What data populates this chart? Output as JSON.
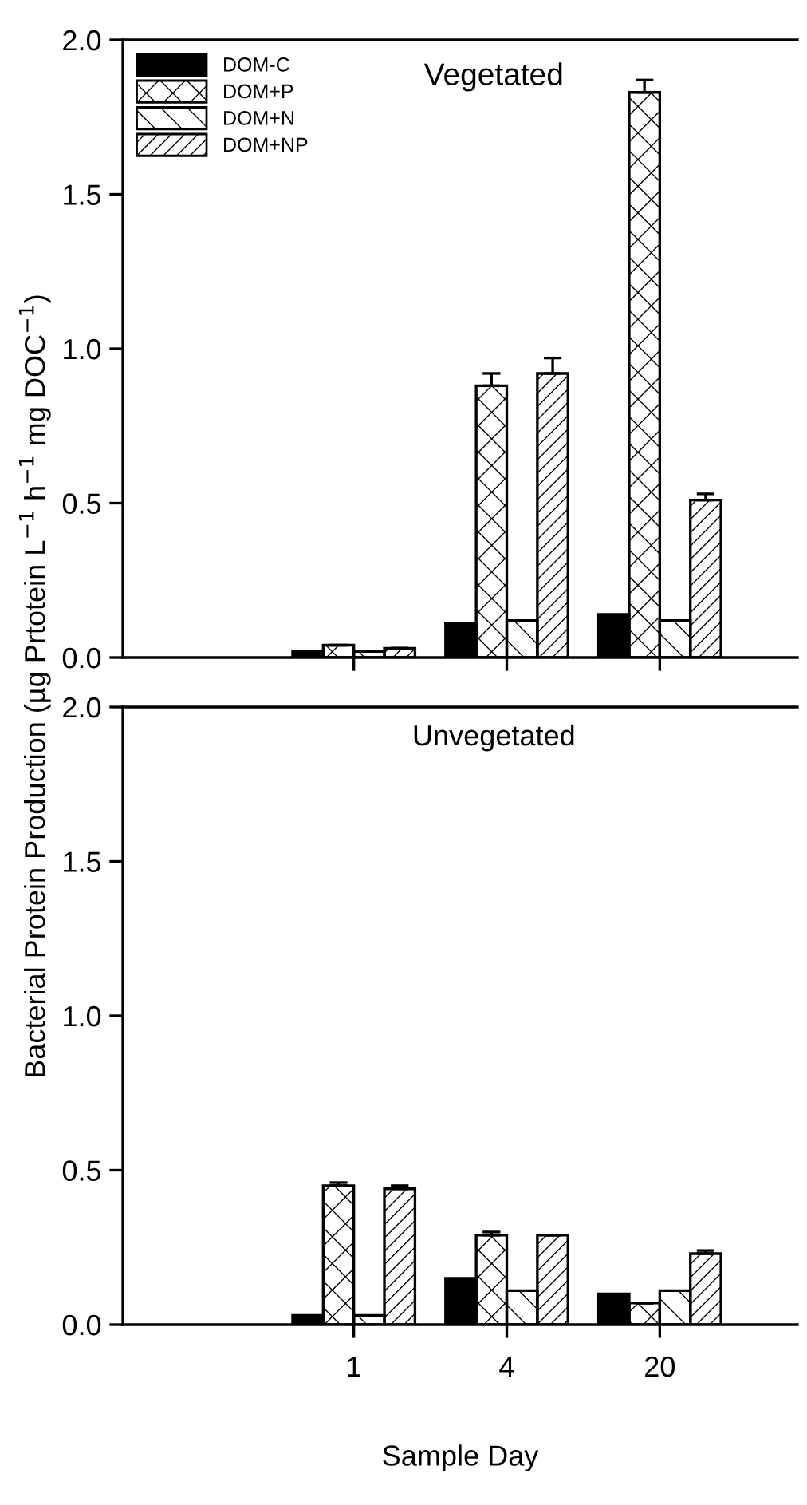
{
  "chart_data": [
    {
      "type": "bar",
      "title": "Vegetated",
      "ylabel": "Bacterial Protein Production (µg Prtotein L$^{−1}$ h$^{−1}$ mg DOC$^{−1}$)",
      "categories": [
        "1",
        "4",
        "20"
      ],
      "ylim": [
        0,
        2.0
      ],
      "yticks": [
        {
          "value": 0,
          "label": "0.0"
        },
        {
          "value": 0.5,
          "label": "0.5"
        },
        {
          "value": 1,
          "label": "1.0"
        },
        {
          "value": 1.5,
          "label": "1.5"
        },
        {
          "value": 2,
          "label": "2.0"
        }
      ],
      "tick_labels": "y",
      "legend": "top left",
      "grid": false,
      "series": [
        {
          "name": "DOM-C",
          "color": "#000000",
          "values": [
            0.02,
            0.11,
            0.14
          ]
        },
        {
          "name": "DOM+P",
          "color": "#000000",
          "values": [
            0.04,
            0.88,
            1.83
          ],
          "errors": [
            null,
            0.04,
            0.04
          ]
        },
        {
          "name": "DOM+N",
          "color": "#000000",
          "values": [
            0.02,
            0.12,
            0.12
          ]
        },
        {
          "name": "DOM+NP",
          "color": "#000000",
          "values": [
            0.03,
            0.92,
            0.51
          ],
          "errors": [
            null,
            0.05,
            0.02
          ]
        }
      ]
    },
    {
      "type": "bar",
      "title": "Unvegetated",
      "xlabel": "Sample Day",
      "categories": [
        "1",
        "4",
        "20"
      ],
      "ylim": [
        0,
        2.0
      ],
      "yticks": [
        {
          "value": 0,
          "label": "0.0"
        },
        {
          "value": 0.5,
          "label": "0.5"
        },
        {
          "value": 1,
          "label": "1.0"
        },
        {
          "value": 1.5,
          "label": "1.5"
        },
        {
          "value": 2,
          "label": "2.0"
        }
      ],
      "grid": false,
      "series": [
        {
          "color": "#000000",
          "values": [
            0.03,
            0.15,
            0.1
          ]
        },
        {
          "color": "#000000",
          "values": [
            0.45,
            0.29,
            0.07
          ],
          "errors": [
            0.01,
            0.01,
            null
          ]
        },
        {
          "color": "#000000",
          "values": [
            0.03,
            0.11,
            0.11
          ]
        },
        {
          "color": "#000000",
          "values": [
            0.44,
            0.29,
            0.23
          ],
          "errors": [
            0.01,
            null,
            0.01
          ]
        }
      ]
    }
  ]
}
